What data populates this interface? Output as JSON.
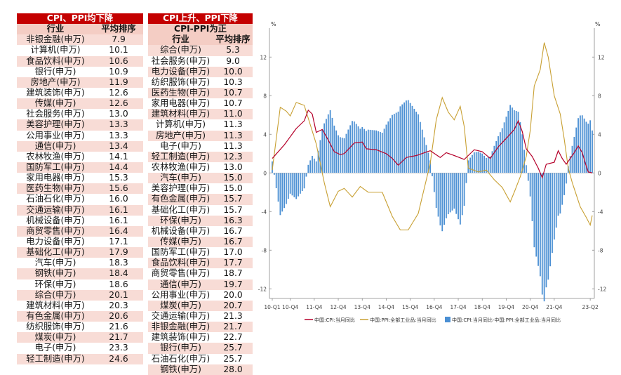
{
  "left_table": {
    "title": "CPI、PPI均下降",
    "header": [
      "行业",
      "平均排序"
    ],
    "rows": [
      [
        "非银金融(申万)",
        "7.9"
      ],
      [
        "计算机(申万)",
        "10.1"
      ],
      [
        "食品饮料(申万)",
        "10.6"
      ],
      [
        "银行(申万)",
        "10.9"
      ],
      [
        "房地产(申万)",
        "11.9"
      ],
      [
        "建筑装饰(申万)",
        "12.6"
      ],
      [
        "传媒(申万)",
        "12.6"
      ],
      [
        "社会服务(申万)",
        "13.0"
      ],
      [
        "美容护理(申万)",
        "13.3"
      ],
      [
        "公用事业(申万)",
        "13.3"
      ],
      [
        "通信(申万)",
        "13.4"
      ],
      [
        "农林牧渔(申万)",
        "14.1"
      ],
      [
        "国防军工(申万)",
        "14.4"
      ],
      [
        "家用电器(申万)",
        "15.3"
      ],
      [
        "医药生物(申万)",
        "15.6"
      ],
      [
        "石油石化(申万)",
        "16.0"
      ],
      [
        "交通运输(申万)",
        "16.1"
      ],
      [
        "机械设备(申万)",
        "16.1"
      ],
      [
        "商贸零售(申万)",
        "16.4"
      ],
      [
        "电力设备(申万)",
        "17.1"
      ],
      [
        "基础化工(申万)",
        "17.9"
      ],
      [
        "汽车(申万)",
        "18.3"
      ],
      [
        "钢铁(申万)",
        "18.4"
      ],
      [
        "环保(申万)",
        "18.6"
      ],
      [
        "综合(申万)",
        "20.1"
      ],
      [
        "建筑材料(申万)",
        "20.3"
      ],
      [
        "有色金属(申万)",
        "20.6"
      ],
      [
        "纺织服饰(申万)",
        "21.6"
      ],
      [
        "煤炭(申万)",
        "21.7"
      ],
      [
        "电子(申万)",
        "23.3"
      ],
      [
        "轻工制造(申万)",
        "24.6"
      ]
    ]
  },
  "right_table": {
    "title": "CPI上升、PPI下降",
    "subtitle": "CPI-PPI为正",
    "header": [
      "行业",
      "平均排序"
    ],
    "rows": [
      [
        "综合(申万)",
        "5.3"
      ],
      [
        "社会服务(申万)",
        "9.0"
      ],
      [
        "电力设备(申万)",
        "10.0"
      ],
      [
        "纺织服饰(申万)",
        "10.3"
      ],
      [
        "医药生物(申万)",
        "10.7"
      ],
      [
        "家用电器(申万)",
        "10.7"
      ],
      [
        "建筑材料(申万)",
        "11.0"
      ],
      [
        "计算机(申万)",
        "11.3"
      ],
      [
        "房地产(申万)",
        "11.3"
      ],
      [
        "电子(申万)",
        "11.3"
      ],
      [
        "轻工制造(申万)",
        "12.3"
      ],
      [
        "农林牧渔(申万)",
        "13.0"
      ],
      [
        "汽车(申万)",
        "15.0"
      ],
      [
        "美容护理(申万)",
        "15.0"
      ],
      [
        "有色金属(申万)",
        "15.7"
      ],
      [
        "基础化工(申万)",
        "15.7"
      ],
      [
        "环保(申万)",
        "16.3"
      ],
      [
        "机械设备(申万)",
        "16.7"
      ],
      [
        "传媒(申万)",
        "16.7"
      ],
      [
        "国防军工(申万)",
        "17.0"
      ],
      [
        "食品饮料(申万)",
        "17.7"
      ],
      [
        "商贸零售(申万)",
        "18.7"
      ],
      [
        "通信(申万)",
        "19.7"
      ],
      [
        "公用事业(申万)",
        "20.0"
      ],
      [
        "煤炭(申万)",
        "20.7"
      ],
      [
        "交通运输(申万)",
        "21.3"
      ],
      [
        "非银金融(申万)",
        "21.7"
      ],
      [
        "建筑装饰(申万)",
        "22.7"
      ],
      [
        "银行(申万)",
        "25.7"
      ],
      [
        "石油石化(申万)",
        "25.7"
      ],
      [
        "钢铁(申万)",
        "28.0"
      ]
    ]
  },
  "chart_data": {
    "type": "line+bar",
    "unit_left": "%",
    "unit_right": "%",
    "ylim": [
      -13,
      15
    ],
    "y_ticks": [
      -12,
      -8,
      -4,
      0,
      4,
      8,
      12
    ],
    "x_ticks": [
      "10-Q1",
      "10-Q4",
      "11-Q4",
      "12-Q4",
      "13-Q4",
      "14-Q4",
      "15-Q4",
      "16-Q4",
      "17-Q4",
      "18-Q4",
      "19-Q4",
      "20-Q4",
      "21-Q4",
      "23-Q2"
    ],
    "x_tick_positions": [
      0,
      9,
      21,
      33,
      45,
      57,
      69,
      81,
      93,
      105,
      117,
      129,
      141,
      159
    ],
    "n_months": 161,
    "colors": {
      "cpi": "#b5002a",
      "ppi": "#c8a033",
      "diff": "#4a8fd3"
    },
    "legend": [
      "中国:CPI:当月同比",
      "中国:PPI:全部工业品:当月同比",
      "中国:CPI:当月同比-中国:PPI:全部工业品:当月同比"
    ],
    "cpi_anchors": [
      [
        0,
        1.5
      ],
      [
        6,
        2.9
      ],
      [
        12,
        4.6
      ],
      [
        16,
        5.4
      ],
      [
        18,
        6.5
      ],
      [
        20,
        6.1
      ],
      [
        22,
        4.2
      ],
      [
        25,
        4.5
      ],
      [
        28,
        3.4
      ],
      [
        31,
        2.2
      ],
      [
        34,
        1.9
      ],
      [
        36,
        2.0
      ],
      [
        41,
        3.1
      ],
      [
        45,
        3.2
      ],
      [
        47,
        2.5
      ],
      [
        52,
        2.4
      ],
      [
        57,
        2.0
      ],
      [
        60,
        1.5
      ],
      [
        63,
        0.8
      ],
      [
        67,
        1.6
      ],
      [
        72,
        1.8
      ],
      [
        79,
        2.3
      ],
      [
        84,
        1.6
      ],
      [
        87,
        2.1
      ],
      [
        91,
        1.8
      ],
      [
        96,
        1.4
      ],
      [
        101,
        2.4
      ],
      [
        105,
        2.2
      ],
      [
        109,
        1.5
      ],
      [
        113,
        2.7
      ],
      [
        118,
        3.8
      ],
      [
        121,
        4.5
      ],
      [
        123,
        5.4
      ],
      [
        125,
        4.3
      ],
      [
        127,
        2.5
      ],
      [
        130,
        1.7
      ],
      [
        133,
        0.5
      ],
      [
        135,
        -0.5
      ],
      [
        137,
        0.9
      ],
      [
        141,
        1.1
      ],
      [
        143,
        2.3
      ],
      [
        145,
        1.5
      ],
      [
        147,
        0.9
      ],
      [
        151,
        2.1
      ],
      [
        153,
        2.8
      ],
      [
        155,
        2.1
      ],
      [
        157,
        0.7
      ],
      [
        158,
        0.1
      ],
      [
        160,
        0.0
      ]
    ],
    "ppi_anchors": [
      [
        0,
        0.3
      ],
      [
        4,
        6.8
      ],
      [
        7,
        6.4
      ],
      [
        9,
        5.9
      ],
      [
        12,
        7.3
      ],
      [
        16,
        7.0
      ],
      [
        19,
        5.0
      ],
      [
        22,
        3.0
      ],
      [
        26,
        -1.0
      ],
      [
        29,
        -3.5
      ],
      [
        33,
        -1.9
      ],
      [
        36,
        -1.6
      ],
      [
        40,
        -2.5
      ],
      [
        44,
        -1.4
      ],
      [
        48,
        -2.0
      ],
      [
        55,
        -2.0
      ],
      [
        60,
        -4.5
      ],
      [
        64,
        -5.9
      ],
      [
        68,
        -5.9
      ],
      [
        73,
        -4.2
      ],
      [
        79,
        1.0
      ],
      [
        82,
        5.5
      ],
      [
        85,
        7.8
      ],
      [
        88,
        6.3
      ],
      [
        91,
        5.5
      ],
      [
        94,
        6.9
      ],
      [
        96,
        4.8
      ],
      [
        98,
        0.5
      ],
      [
        103,
        0.1
      ],
      [
        107,
        0.3
      ],
      [
        111,
        -0.7
      ],
      [
        115,
        -1.5
      ],
      [
        119,
        -3.0
      ],
      [
        121,
        -2.0
      ],
      [
        124,
        -0.4
      ],
      [
        127,
        1.7
      ],
      [
        129,
        4.4
      ],
      [
        131,
        9.0
      ],
      [
        134,
        10.7
      ],
      [
        136,
        13.5
      ],
      [
        138,
        12.0
      ],
      [
        141,
        8.0
      ],
      [
        144,
        6.1
      ],
      [
        146,
        3.5
      ],
      [
        148,
        0.5
      ],
      [
        150,
        -1.0
      ],
      [
        154,
        -3.5
      ],
      [
        157,
        -4.6
      ],
      [
        159,
        -5.4
      ],
      [
        160,
        -4.4
      ]
    ]
  }
}
